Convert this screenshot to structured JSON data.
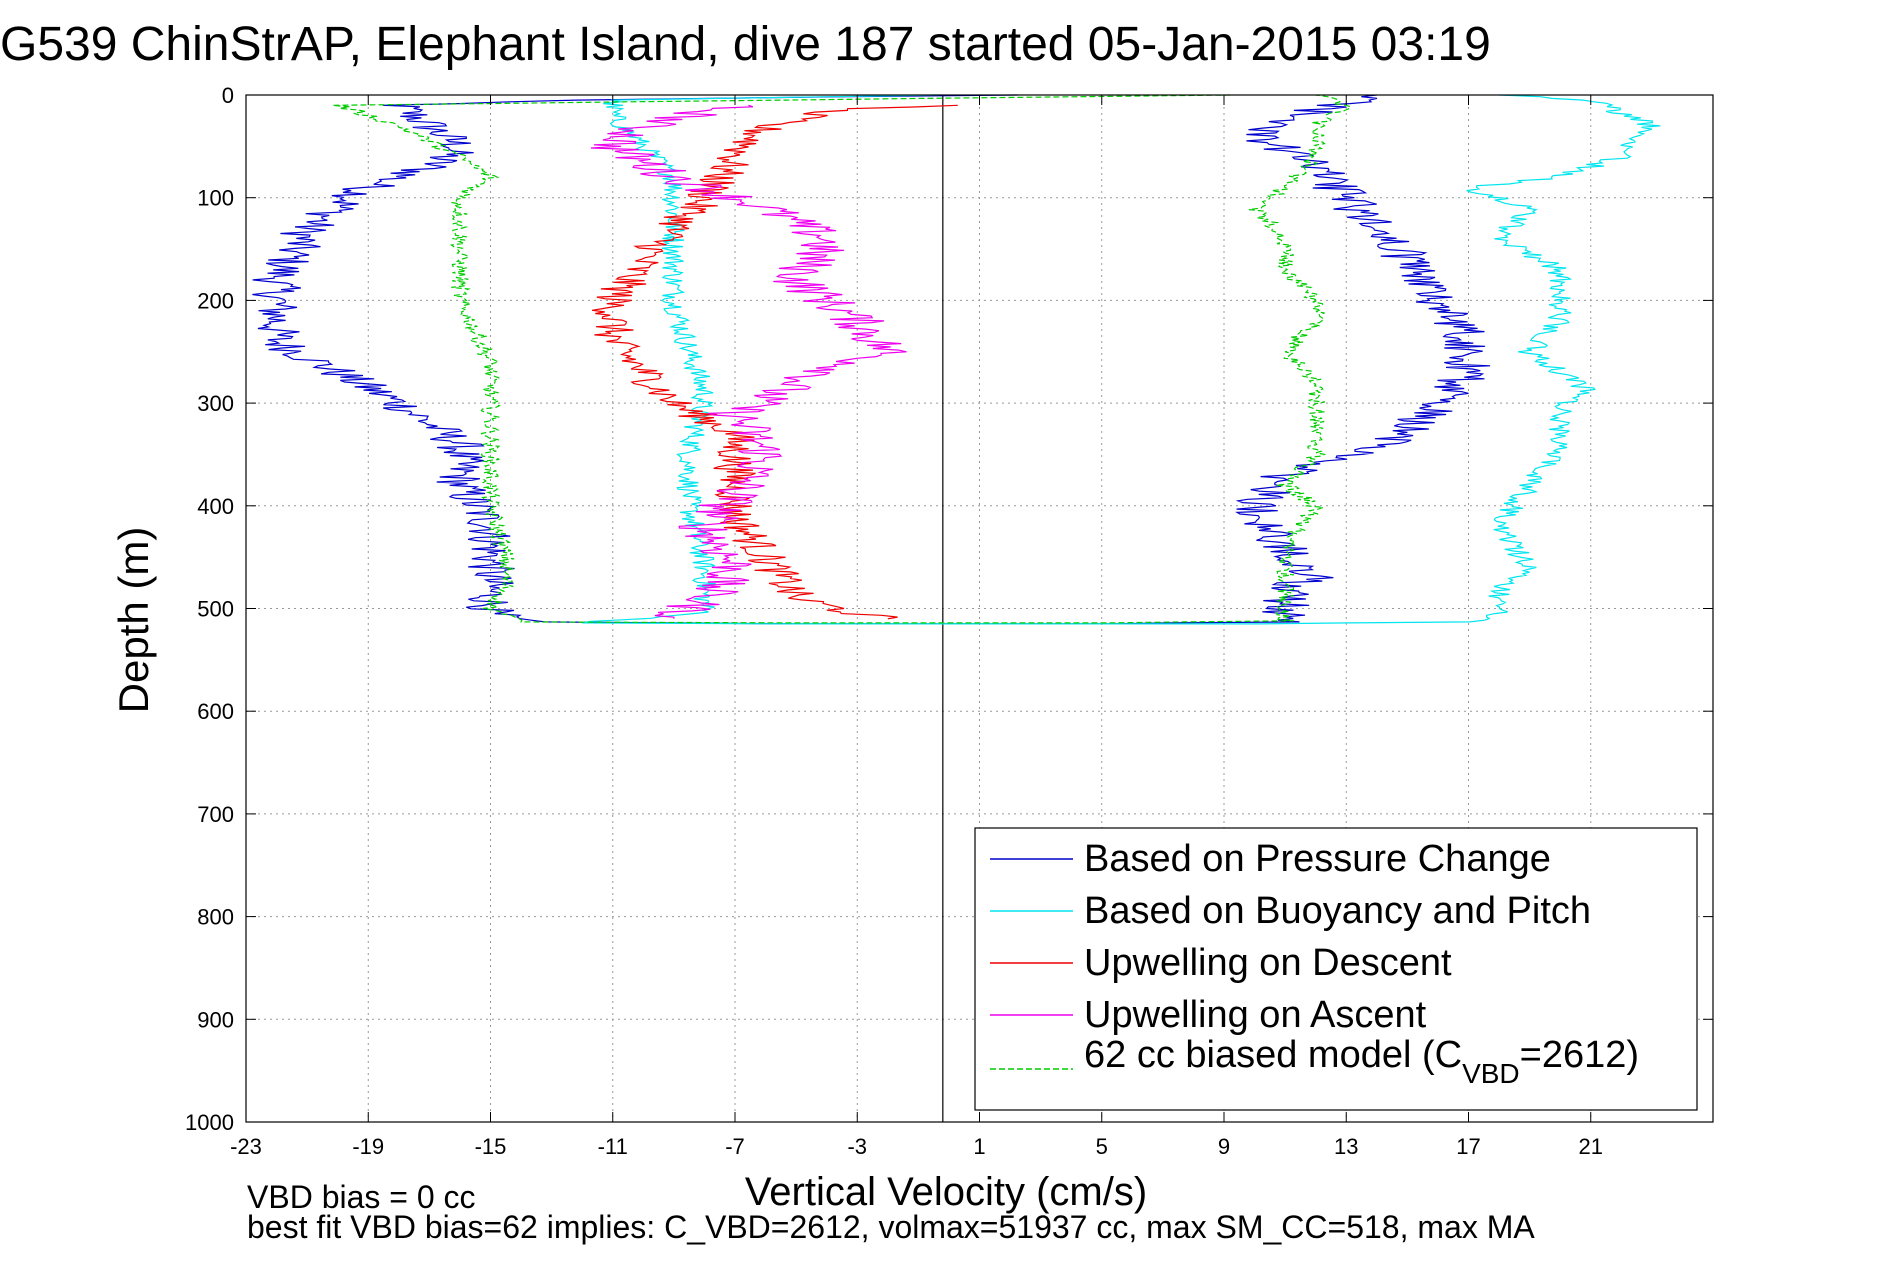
{
  "title": "G539 ChinStrAP, Elephant Island, dive 187 started 05-Jan-2015 03:19",
  "footer": {
    "line1": "VBD bias = 0 cc",
    "line2": "best fit VBD bias=62 implies: C_VBD=2612, volmax=51937 cc, max SM_CC=518, max MA"
  },
  "chart_data": {
    "type": "line",
    "xlabel": "Vertical Velocity (cm/s)",
    "ylabel": "Depth (m)",
    "xlim": [
      -23,
      25
    ],
    "ylim": [
      0,
      1000
    ],
    "y_reversed": true,
    "xticks": [
      -23,
      -19,
      -15,
      -11,
      -7,
      -3,
      1,
      5,
      9,
      13,
      17,
      21
    ],
    "yticks": [
      0,
      100,
      200,
      300,
      400,
      500,
      600,
      700,
      800,
      900,
      1000
    ],
    "grid": true,
    "legend_position": "bottom-right",
    "reference_line_x": -0.2,
    "legend": [
      {
        "label": "Based on Pressure Change",
        "color": "#0000cc",
        "dash": false
      },
      {
        "label": "Based on Buoyancy and Pitch",
        "color": "#00e5ee",
        "dash": false
      },
      {
        "label": "Upwelling on Descent",
        "color": "#ee0000",
        "dash": false
      },
      {
        "label": "Upwelling on Ascent",
        "color": "#ee00ee",
        "dash": false
      },
      {
        "label": "62 cc biased model (C",
        "sub": "VBD",
        "suffix": "=2612)",
        "color": "#00cc00",
        "dash": true
      }
    ],
    "series": [
      {
        "name": "Based on Pressure Change",
        "color": "#0000cc",
        "dash": false,
        "noise": 0.8,
        "points": [
          [
            2,
            0
          ],
          [
            -13,
            5
          ],
          [
            -18,
            10
          ],
          [
            -17,
            30
          ],
          [
            -16,
            50
          ],
          [
            -17,
            70
          ],
          [
            -19,
            90
          ],
          [
            -21,
            130
          ],
          [
            -22,
            180
          ],
          [
            -22,
            240
          ],
          [
            -20,
            270
          ],
          [
            -18,
            300
          ],
          [
            -16,
            340
          ],
          [
            -16,
            380
          ],
          [
            -15,
            420
          ],
          [
            -15,
            450
          ],
          [
            -15,
            480
          ],
          [
            -15,
            505
          ],
          [
            -14,
            513
          ],
          [
            -5,
            515
          ],
          [
            5,
            515
          ],
          [
            11,
            513
          ],
          [
            11,
            500
          ],
          [
            11,
            480
          ],
          [
            12,
            470
          ],
          [
            11,
            440
          ],
          [
            10,
            400
          ],
          [
            11,
            370
          ],
          [
            13,
            350
          ],
          [
            15,
            330
          ],
          [
            16,
            300
          ],
          [
            17,
            270
          ],
          [
            17,
            240
          ],
          [
            16,
            200
          ],
          [
            15,
            160
          ],
          [
            14,
            130
          ],
          [
            13,
            100
          ],
          [
            12,
            70
          ],
          [
            10,
            40
          ],
          [
            12,
            15
          ],
          [
            14,
            0
          ]
        ]
      },
      {
        "name": "Based on Buoyancy and Pitch",
        "color": "#00e5ee",
        "dash": false,
        "noise": 0.4,
        "points": [
          [
            -0.2,
            0
          ],
          [
            -11,
            5
          ],
          [
            -11,
            20
          ],
          [
            -10,
            50
          ],
          [
            -9,
            80
          ],
          [
            -9,
            100
          ],
          [
            -9,
            200
          ],
          [
            -8.5,
            250
          ],
          [
            -8,
            290
          ],
          [
            -8.5,
            350
          ],
          [
            -8.5,
            400
          ],
          [
            -8,
            460
          ],
          [
            -8,
            505
          ],
          [
            -12,
            514
          ],
          [
            -5,
            515
          ],
          [
            10,
            515
          ],
          [
            17,
            513
          ],
          [
            18,
            505
          ],
          [
            18,
            480
          ],
          [
            19,
            460
          ],
          [
            18,
            420
          ],
          [
            19,
            380
          ],
          [
            20,
            340
          ],
          [
            20,
            300
          ],
          [
            21,
            290
          ],
          [
            19,
            250
          ],
          [
            20,
            220
          ],
          [
            20,
            190
          ],
          [
            20,
            170
          ],
          [
            18,
            140
          ],
          [
            19,
            110
          ],
          [
            17,
            90
          ],
          [
            20,
            80
          ],
          [
            22,
            60
          ],
          [
            23,
            30
          ],
          [
            21,
            5
          ],
          [
            18,
            0
          ]
        ]
      },
      {
        "name": "Upwelling on Descent",
        "color": "#ee0000",
        "dash": false,
        "noise": 0.7,
        "points": [
          [
            -0.2,
            10
          ],
          [
            -4,
            15
          ],
          [
            -6,
            30
          ],
          [
            -7,
            60
          ],
          [
            -8,
            100
          ],
          [
            -9,
            130
          ],
          [
            -10,
            160
          ],
          [
            -11,
            200
          ],
          [
            -11,
            240
          ],
          [
            -10,
            270
          ],
          [
            -9,
            300
          ],
          [
            -7,
            330
          ],
          [
            -7,
            370
          ],
          [
            -7,
            410
          ],
          [
            -6,
            450
          ],
          [
            -5,
            490
          ],
          [
            -3,
            505
          ],
          [
            -2,
            510
          ]
        ]
      },
      {
        "name": "Upwelling on Ascent",
        "color": "#ee00ee",
        "dash": false,
        "noise": 0.9,
        "points": [
          [
            -7,
            10
          ],
          [
            -10,
            30
          ],
          [
            -11,
            50
          ],
          [
            -9,
            80
          ],
          [
            -6,
            110
          ],
          [
            -4,
            140
          ],
          [
            -5,
            180
          ],
          [
            -3,
            220
          ],
          [
            -2,
            250
          ],
          [
            -5,
            280
          ],
          [
            -7,
            310
          ],
          [
            -6,
            350
          ],
          [
            -7,
            390
          ],
          [
            -8,
            420
          ],
          [
            -7,
            460
          ],
          [
            -8,
            490
          ],
          [
            -9,
            510
          ]
        ]
      },
      {
        "name": "62 cc biased model (C_VBD=2612)",
        "color": "#00cc00",
        "dash": true,
        "noise": 0.3,
        "points": [
          [
            9,
            0
          ],
          [
            -20,
            10
          ],
          [
            -18,
            30
          ],
          [
            -16,
            60
          ],
          [
            -15,
            80
          ],
          [
            -16,
            100
          ],
          [
            -16,
            200
          ],
          [
            -15,
            260
          ],
          [
            -15,
            290
          ],
          [
            -15,
            350
          ],
          [
            -15,
            400
          ],
          [
            -14.5,
            450
          ],
          [
            -14.5,
            480
          ],
          [
            -15,
            500
          ],
          [
            -14,
            513
          ],
          [
            -5,
            514
          ],
          [
            5,
            514
          ],
          [
            11,
            512
          ],
          [
            11,
            500
          ],
          [
            11,
            480
          ],
          [
            11,
            440
          ],
          [
            12,
            400
          ],
          [
            11,
            380
          ],
          [
            12,
            350
          ],
          [
            12,
            310
          ],
          [
            12,
            280
          ],
          [
            11,
            250
          ],
          [
            12,
            220
          ],
          [
            12,
            200
          ],
          [
            11,
            170
          ],
          [
            11,
            140
          ],
          [
            10,
            110
          ],
          [
            11,
            90
          ],
          [
            12,
            60
          ],
          [
            12,
            30
          ],
          [
            13,
            10
          ],
          [
            12,
            0
          ]
        ]
      }
    ]
  }
}
